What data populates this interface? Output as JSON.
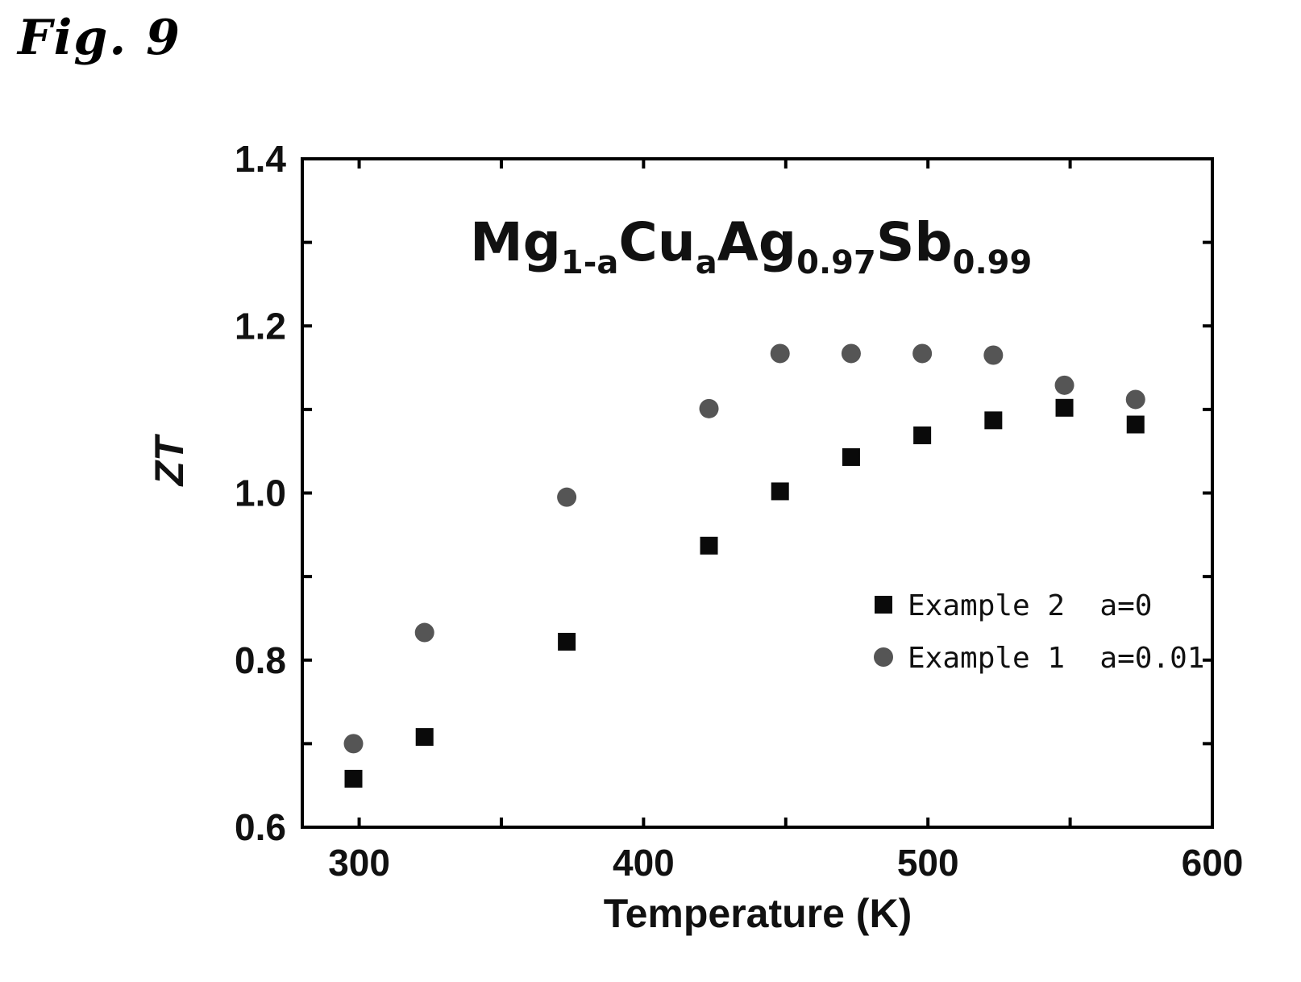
{
  "figure_label": "Fig. 9",
  "chart_data": {
    "type": "scatter",
    "title": {
      "parts": [
        {
          "text": "Mg",
          "sub": false
        },
        {
          "text": "1-a",
          "sub": true
        },
        {
          "text": "Cu",
          "sub": false
        },
        {
          "text": "a",
          "sub": true
        },
        {
          "text": "Ag",
          "sub": false
        },
        {
          "text": "0.97",
          "sub": true
        },
        {
          "text": "Sb",
          "sub": false
        },
        {
          "text": "0.99",
          "sub": true
        }
      ]
    },
    "xlabel": "Temperature (K)",
    "ylabel": "ZT",
    "xlim": [
      280,
      600
    ],
    "ylim": [
      0.6,
      1.4
    ],
    "xticks": [
      300,
      400,
      500,
      600
    ],
    "xticks_minor": [
      350,
      450,
      550
    ],
    "yticks": [
      0.6,
      0.8,
      1.0,
      1.2,
      1.4
    ],
    "yticks_minor": [
      0.7,
      0.9,
      1.1,
      1.3
    ],
    "ytick_labels": [
      "0.6",
      "0.8",
      "1.0",
      "1.2",
      "1.4"
    ],
    "grid": false,
    "legend_position": "center-right",
    "series": [
      {
        "name": "Example 2  a=0",
        "marker": "square",
        "color": "#0a0a0a",
        "x": [
          298,
          323,
          373,
          423,
          448,
          473,
          498,
          523,
          548,
          573
        ],
        "y": [
          0.658,
          0.708,
          0.822,
          0.937,
          1.002,
          1.043,
          1.069,
          1.087,
          1.102,
          1.082
        ]
      },
      {
        "name": "Example 1  a=0.01",
        "marker": "circle",
        "color": "#555555",
        "x": [
          298,
          323,
          373,
          423,
          448,
          473,
          498,
          523,
          548,
          573
        ],
        "y": [
          0.7,
          0.833,
          0.995,
          1.101,
          1.167,
          1.167,
          1.167,
          1.165,
          1.129,
          1.112
        ]
      }
    ]
  }
}
